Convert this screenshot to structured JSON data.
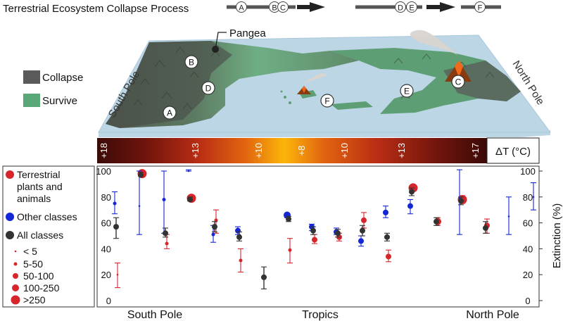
{
  "header": {
    "title": "Terrestrial Ecosystem Collapse Process",
    "markers": [
      "A",
      "B",
      "C",
      "D",
      "E",
      "F"
    ]
  },
  "map": {
    "pangea_label": "Pangea",
    "left_pole_label": "South Pole",
    "right_pole_label": "North Pole",
    "sites": [
      "A",
      "B",
      "C",
      "D",
      "E",
      "F"
    ]
  },
  "legend_top": {
    "items": [
      {
        "label": "Collapse",
        "color": "#5a5a5a"
      },
      {
        "label": "Survive",
        "color": "#5aa877"
      }
    ]
  },
  "temperature_bar": {
    "labels": [
      "+18",
      "+13",
      "+10",
      "+8",
      "+10",
      "+13",
      "+17"
    ],
    "unit_label": "ΔT (°C)"
  },
  "legend_bottom": {
    "groups": [
      {
        "label": "Terrestrial plants and animals",
        "lines": [
          "Terrestrial",
          "plants and",
          "animals"
        ],
        "color": "#d7262b"
      },
      {
        "label": "Other classes",
        "lines": [
          "Other classes"
        ],
        "color": "#1427d6"
      },
      {
        "label": "All classes",
        "lines": [
          "All classes"
        ],
        "color": "#333333"
      }
    ],
    "sizes": [
      "< 5",
      "5-50",
      "50-100",
      "100-250",
      ">250"
    ]
  },
  "chart_data": {
    "type": "scatter",
    "ylabel": "Extinction (%)",
    "ylim": [
      0,
      100
    ],
    "yticks": [
      0,
      20,
      40,
      60,
      80,
      100
    ],
    "x_labels": [
      "South Pole",
      "Tropics",
      "North Pole"
    ],
    "series": [
      {
        "name": "Terrestrial plants and animals",
        "color": "#d7262b",
        "points": [
          {
            "x": 1,
            "y": 20,
            "lo": 10,
            "hi": 29,
            "size": 1
          },
          {
            "x": 2,
            "y": 98,
            "lo": 97,
            "hi": 99,
            "size": 5
          },
          {
            "x": 3,
            "y": 44,
            "lo": 40,
            "hi": 51,
            "size": 2
          },
          {
            "x": 4,
            "y": 79,
            "lo": 77,
            "hi": 80,
            "size": 5
          },
          {
            "x": 5,
            "y": 62,
            "lo": 52,
            "hi": 70,
            "size": 2
          },
          {
            "x": 6,
            "y": 31,
            "lo": 22,
            "hi": 40,
            "size": 2
          },
          {
            "x": 8,
            "y": 39,
            "lo": 29,
            "hi": 48,
            "size": 2
          },
          {
            "x": 9,
            "y": 47,
            "lo": 44,
            "hi": 51,
            "size": 3
          },
          {
            "x": 10,
            "y": 49,
            "lo": 46,
            "hi": 52,
            "size": 3
          },
          {
            "x": 11,
            "y": 62,
            "lo": 56,
            "hi": 68,
            "size": 3
          },
          {
            "x": 12,
            "y": 34,
            "lo": 30,
            "hi": 39,
            "size": 3
          },
          {
            "x": 13,
            "y": 87,
            "lo": 85,
            "hi": 89,
            "size": 5
          },
          {
            "x": 14,
            "y": 61,
            "lo": 58,
            "hi": 64,
            "size": 4
          },
          {
            "x": 15,
            "y": 78,
            "lo": 75,
            "hi": 81,
            "size": 5
          },
          {
            "x": 16,
            "y": 58,
            "lo": 52,
            "hi": 63,
            "size": 3
          }
        ]
      },
      {
        "name": "Other classes",
        "color": "#1427d6",
        "points": [
          {
            "x": 1,
            "y": 75,
            "lo": 67,
            "hi": 84,
            "size": 2
          },
          {
            "x": 2,
            "y": 73,
            "lo": 51,
            "hi": 100,
            "size": 1
          },
          {
            "x": 3,
            "y": 78,
            "lo": 52,
            "hi": 100,
            "size": 2
          },
          {
            "x": 4,
            "y": 100,
            "lo": 100,
            "hi": 101,
            "size": 1
          },
          {
            "x": 5,
            "y": 51,
            "lo": 45,
            "hi": 58,
            "size": 2
          },
          {
            "x": 6,
            "y": 54,
            "lo": 51,
            "hi": 57,
            "size": 3
          },
          {
            "x": 8,
            "y": 66,
            "lo": 64,
            "hi": 67,
            "size": 4
          },
          {
            "x": 9,
            "y": 57,
            "lo": 54,
            "hi": 59,
            "size": 3
          },
          {
            "x": 10,
            "y": 53,
            "lo": 51,
            "hi": 56,
            "size": 3
          },
          {
            "x": 11,
            "y": 46,
            "lo": 42,
            "hi": 50,
            "size": 3
          },
          {
            "x": 12,
            "y": 68,
            "lo": 64,
            "hi": 73,
            "size": 3
          },
          {
            "x": 13,
            "y": 73,
            "lo": 67,
            "hi": 78,
            "size": 3
          },
          {
            "x": 15,
            "y": 79,
            "lo": 51,
            "hi": 102,
            "size": 1
          },
          {
            "x": 17,
            "y": 65,
            "lo": 51,
            "hi": 80,
            "size": 1
          },
          {
            "x": 18,
            "y": 80,
            "lo": 70,
            "hi": 91,
            "size": 1
          }
        ]
      },
      {
        "name": "All classes",
        "color": "#333333",
        "points": [
          {
            "x": 1,
            "y": 57,
            "lo": 48,
            "hi": 64,
            "size": 3
          },
          {
            "x": 2,
            "y": 97,
            "lo": 96,
            "hi": 99,
            "size": 3
          },
          {
            "x": 3,
            "y": 52,
            "lo": 49,
            "hi": 56,
            "size": 3
          },
          {
            "x": 4,
            "y": 78,
            "lo": 77,
            "hi": 80,
            "size": 3
          },
          {
            "x": 5,
            "y": 57,
            "lo": 53,
            "hi": 61,
            "size": 3
          },
          {
            "x": 6,
            "y": 49,
            "lo": 46,
            "hi": 53,
            "size": 3
          },
          {
            "x": 7,
            "y": 18,
            "lo": 9,
            "hi": 26,
            "size": 3
          },
          {
            "x": 8,
            "y": 63,
            "lo": 61,
            "hi": 65,
            "size": 3
          },
          {
            "x": 9,
            "y": 54,
            "lo": 51,
            "hi": 57,
            "size": 3
          },
          {
            "x": 10,
            "y": 52,
            "lo": 49,
            "hi": 55,
            "size": 3
          },
          {
            "x": 11,
            "y": 54,
            "lo": 50,
            "hi": 58,
            "size": 3
          },
          {
            "x": 12,
            "y": 49,
            "lo": 46,
            "hi": 52,
            "size": 3
          },
          {
            "x": 13,
            "y": 84,
            "lo": 81,
            "hi": 87,
            "size": 3
          },
          {
            "x": 14,
            "y": 61,
            "lo": 58,
            "hi": 64,
            "size": 3
          },
          {
            "x": 15,
            "y": 77,
            "lo": 74,
            "hi": 80,
            "size": 3
          },
          {
            "x": 16,
            "y": 56,
            "lo": 52,
            "hi": 61,
            "size": 3
          }
        ]
      }
    ]
  }
}
